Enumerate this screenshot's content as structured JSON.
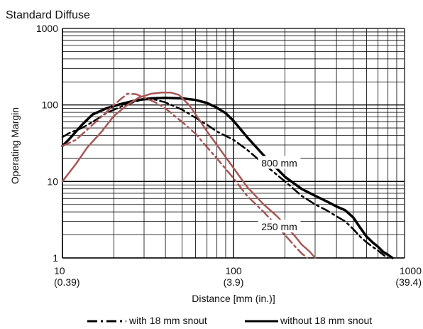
{
  "chart_data": {
    "type": "line",
    "title": "Standard Diffuse",
    "xlabel": "Distance [mm (in.)]",
    "ylabel": "Operating Margin",
    "x_scale": "log",
    "y_scale": "log",
    "xlim": [
      10,
      1000
    ],
    "ylim": [
      1,
      1000
    ],
    "grid": true,
    "x_ticks": [
      {
        "value": 10,
        "label": "10",
        "sublabel": "(0.39)"
      },
      {
        "value": 100,
        "label": "100",
        "sublabel": "(3.9)"
      },
      {
        "value": 1000,
        "label": "1000",
        "sublabel": "(39.4)"
      }
    ],
    "y_ticks": [
      {
        "value": 1,
        "label": "1"
      },
      {
        "value": 10,
        "label": "10"
      },
      {
        "value": 100,
        "label": "100"
      },
      {
        "value": 1000,
        "label": "1000"
      }
    ],
    "annotations": [
      {
        "text": "800 mm",
        "x": 180,
        "y": 17
      },
      {
        "text": "250 mm",
        "x": 180,
        "y": 2.5
      }
    ],
    "legend": {
      "placement": "bottom",
      "entries": [
        {
          "label": "with 18 mm snout",
          "style": "dashdot"
        },
        {
          "label": "without 18 mm snout",
          "style": "solid"
        }
      ]
    },
    "colors": {
      "series_800": "#000000",
      "series_250": "#a85656"
    },
    "series": [
      {
        "color": "#000000",
        "style": "solid",
        "width": 3.5,
        "x": [
          10,
          11,
          13,
          15,
          18,
          22,
          27,
          33,
          40,
          50,
          60,
          70,
          80,
          90,
          100,
          120,
          150,
          200,
          250,
          300,
          350,
          400,
          450,
          500,
          550,
          600,
          650,
          700,
          750,
          800,
          850
        ],
        "y": [
          29,
          36,
          55,
          75,
          90,
          103,
          115,
          122,
          124,
          122,
          116,
          106,
          92,
          78,
          62,
          38,
          22,
          11.5,
          8,
          6.5,
          5.5,
          4.7,
          4.2,
          3.4,
          2.5,
          1.9,
          1.6,
          1.4,
          1.2,
          1.1,
          1.0
        ]
      },
      {
        "color": "#000000",
        "style": "dashdot",
        "width": 2.5,
        "x": [
          10,
          11,
          13,
          15,
          18,
          22,
          27,
          30,
          35,
          40,
          50,
          60,
          70,
          80,
          100,
          120,
          150,
          200,
          250,
          300,
          350,
          400,
          450,
          500,
          550,
          600,
          650,
          700,
          750,
          800
        ],
        "y": [
          38,
          43,
          50,
          60,
          78,
          95,
          112,
          118,
          117,
          108,
          87,
          68,
          55,
          45,
          35,
          26,
          17,
          10,
          6.5,
          5,
          4.2,
          3.5,
          3.0,
          2.4,
          1.9,
          1.6,
          1.4,
          1.25,
          1.1,
          1.0
        ]
      },
      {
        "color": "#a85656",
        "style": "solid",
        "width": 2.5,
        "x": [
          10,
          12,
          14,
          17,
          20,
          24,
          28,
          33,
          38,
          43,
          48,
          55,
          62,
          70,
          80,
          100,
          120,
          150,
          180,
          200,
          230,
          250,
          280,
          300
        ],
        "y": [
          10,
          17,
          28,
          45,
          72,
          100,
          125,
          140,
          145,
          145,
          135,
          100,
          68,
          45,
          30,
          15,
          8.5,
          5,
          3.5,
          2.7,
          1.9,
          1.5,
          1.2,
          1.0
        ]
      },
      {
        "color": "#a85656",
        "style": "dashdot",
        "width": 2.5,
        "x": [
          10,
          12,
          15,
          18,
          20,
          22,
          24,
          27,
          30,
          35,
          40,
          50,
          60,
          70,
          80,
          100,
          120,
          150,
          180,
          200,
          230,
          250,
          270
        ],
        "y": [
          29,
          35,
          55,
          80,
          100,
          120,
          140,
          138,
          125,
          108,
          90,
          60,
          42,
          28,
          20,
          11,
          6.5,
          4.0,
          2.6,
          2.0,
          1.4,
          1.15,
          1.0
        ]
      }
    ]
  }
}
